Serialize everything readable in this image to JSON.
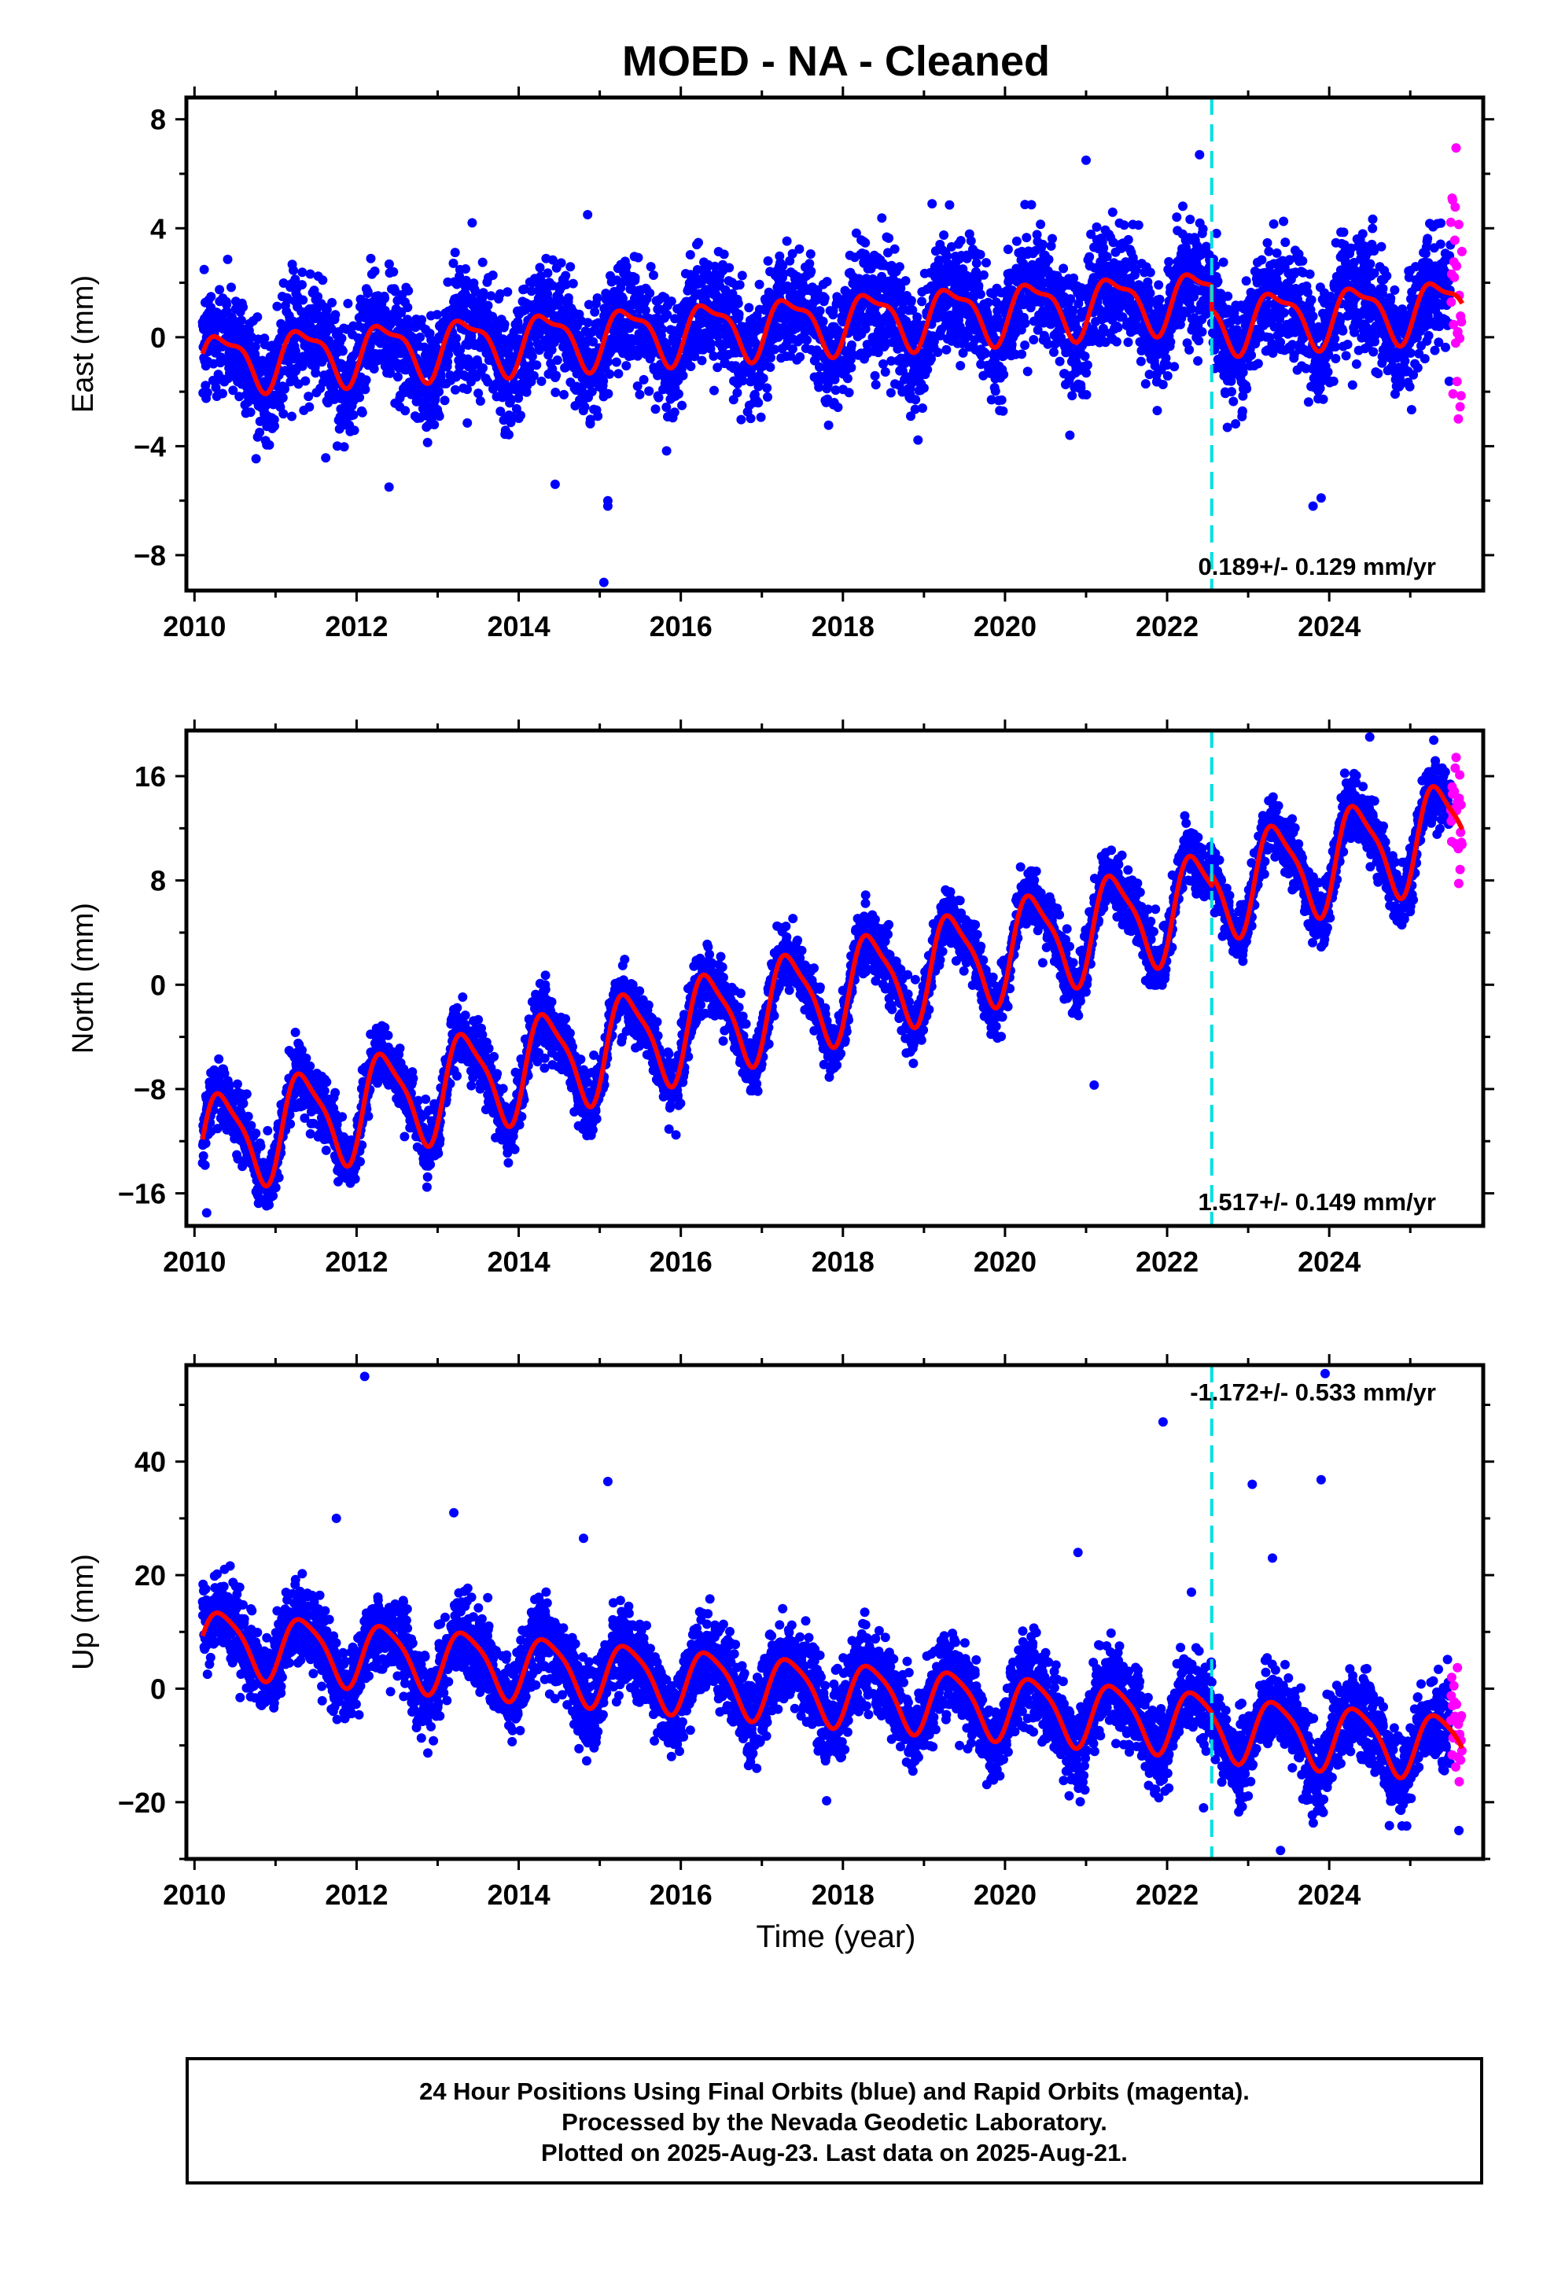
{
  "title": "MOED  - NA - Cleaned",
  "footer": {
    "lines": [
      "24 Hour Positions Using Final Orbits (blue) and Rapid Orbits (magenta).",
      "Processed by the Nevada Geodetic Laboratory.",
      "Plotted on 2025-Aug-23. Last data on 2025-Aug-21."
    ]
  },
  "colors": {
    "final_orbits": "#0000ff",
    "rapid_orbits": "#ff00ff",
    "fit_model": "#ff0000",
    "equipment_change": "#00e0e0",
    "frame": "#000000"
  },
  "chart_data": [
    {
      "type": "scatter",
      "component": "east",
      "xlabel": "",
      "ylabel": "East (mm)",
      "xlim": [
        2009.9,
        2025.9
      ],
      "ylim": [
        -9.3,
        8.8
      ],
      "xticks": [
        2010,
        2012,
        2014,
        2016,
        2018,
        2020,
        2022,
        2024
      ],
      "yticks": [
        -8,
        -4,
        0,
        4,
        8
      ],
      "ytick_labels": [
        "−8",
        "−4",
        "0",
        "4",
        "8"
      ],
      "rate_label": "0.189+/- 0.129 mm/yr",
      "rate_position": "bottom-right",
      "equipment_change_epoch": 2022.55,
      "data_span": [
        2010.1,
        2025.64
      ],
      "rapid_span": [
        2025.5,
        2025.64
      ],
      "model": {
        "offset": -0.9,
        "ref_epoch": 2010.1,
        "rate": 0.189,
        "annual_amplitude": 1.0,
        "annual_phase": 0.0,
        "semiannual_amplitude": 0.35,
        "semiannual_phase": 1.0,
        "steps": [
          {
            "epoch": 2022.55,
            "size": -0.9
          }
        ]
      },
      "scatter_sd": 1.05,
      "rapid_extra_sd": 2.4,
      "outliers": [
        {
          "x": 2015.05,
          "y": -9.0
        },
        {
          "x": 2015.1,
          "y": -6.2
        },
        {
          "x": 2015.1,
          "y": -6.0
        },
        {
          "x": 2014.45,
          "y": -5.4
        },
        {
          "x": 2021.0,
          "y": 6.5
        },
        {
          "x": 2022.4,
          "y": 6.7
        },
        {
          "x": 2014.85,
          "y": 4.5
        },
        {
          "x": 2023.8,
          "y": -6.2
        },
        {
          "x": 2023.9,
          "y": -5.9
        },
        {
          "x": 2019.1,
          "y": 4.9
        },
        {
          "x": 2020.8,
          "y": -3.6
        },
        {
          "x": 2012.4,
          "y": -5.5
        }
      ]
    },
    {
      "type": "scatter",
      "component": "north",
      "xlabel": "",
      "ylabel": "North (mm)",
      "xlim": [
        2009.9,
        2025.9
      ],
      "ylim": [
        -18.5,
        19.5
      ],
      "xticks": [
        2010,
        2012,
        2014,
        2016,
        2018,
        2020,
        2022,
        2024
      ],
      "yticks": [
        -16,
        -8,
        0,
        8,
        16
      ],
      "ytick_labels": [
        "−16",
        "−8",
        "0",
        "8",
        "16"
      ],
      "rate_label": "1.517+/- 0.149 mm/yr",
      "rate_position": "bottom-right",
      "equipment_change_epoch": 2022.55,
      "data_span": [
        2010.1,
        2025.64
      ],
      "rapid_span": [
        2025.5,
        2025.64
      ],
      "model": {
        "offset": -12.3,
        "ref_epoch": 2010.1,
        "rate": 1.517,
        "annual_amplitude": 3.7,
        "annual_phase": 0.0,
        "semiannual_amplitude": 0.9,
        "semiannual_phase": 0.5,
        "steps": [
          {
            "epoch": 2022.55,
            "size": 0.8
          }
        ]
      },
      "scatter_sd": 1.15,
      "rapid_extra_sd": 2.2,
      "outliers": [
        {
          "x": 2010.15,
          "y": -17.5
        },
        {
          "x": 2021.1,
          "y": -7.7
        },
        {
          "x": 2024.5,
          "y": 19.0
        }
      ]
    },
    {
      "type": "scatter",
      "component": "up",
      "xlabel": "Time (year)",
      "ylabel": "Up (mm)",
      "xlim": [
        2009.9,
        2025.9
      ],
      "ylim": [
        -30.0,
        57.0
      ],
      "xticks": [
        2010,
        2012,
        2014,
        2016,
        2018,
        2020,
        2022,
        2024
      ],
      "yticks": [
        -20,
        0,
        20,
        40
      ],
      "ytick_labels": [
        "−20",
        "0",
        "20",
        "40"
      ],
      "rate_label": "-1.172+/- 0.533 mm/yr",
      "rate_position": "top-right",
      "equipment_change_epoch": 2022.55,
      "data_span": [
        2010.1,
        2025.64
      ],
      "rapid_span": [
        2025.5,
        2025.64
      ],
      "model": {
        "offset": 8.5,
        "ref_epoch": 2010.1,
        "rate": -1.172,
        "annual_amplitude": 5.5,
        "annual_phase": 0.0,
        "semiannual_amplitude": 1.1,
        "semiannual_phase": 0.8,
        "steps": [
          {
            "epoch": 2022.55,
            "size": -0.5
          }
        ]
      },
      "scatter_sd": 3.6,
      "rapid_extra_sd": 5.0,
      "outliers": [
        {
          "x": 2012.1,
          "y": 55.0
        },
        {
          "x": 2023.95,
          "y": 55.5
        },
        {
          "x": 2021.95,
          "y": 47.0
        },
        {
          "x": 2015.1,
          "y": 36.5
        },
        {
          "x": 2023.9,
          "y": 36.8
        },
        {
          "x": 2023.05,
          "y": 36.0
        },
        {
          "x": 2013.2,
          "y": 31.0
        },
        {
          "x": 2011.75,
          "y": 30.0
        },
        {
          "x": 2020.9,
          "y": 24.0
        },
        {
          "x": 2023.3,
          "y": 23.0
        },
        {
          "x": 2014.8,
          "y": 26.5
        },
        {
          "x": 2022.3,
          "y": 17.0
        },
        {
          "x": 2023.4,
          "y": -28.5
        },
        {
          "x": 2022.45,
          "y": -21.0
        },
        {
          "x": 2025.6,
          "y": -25.0
        }
      ]
    }
  ]
}
